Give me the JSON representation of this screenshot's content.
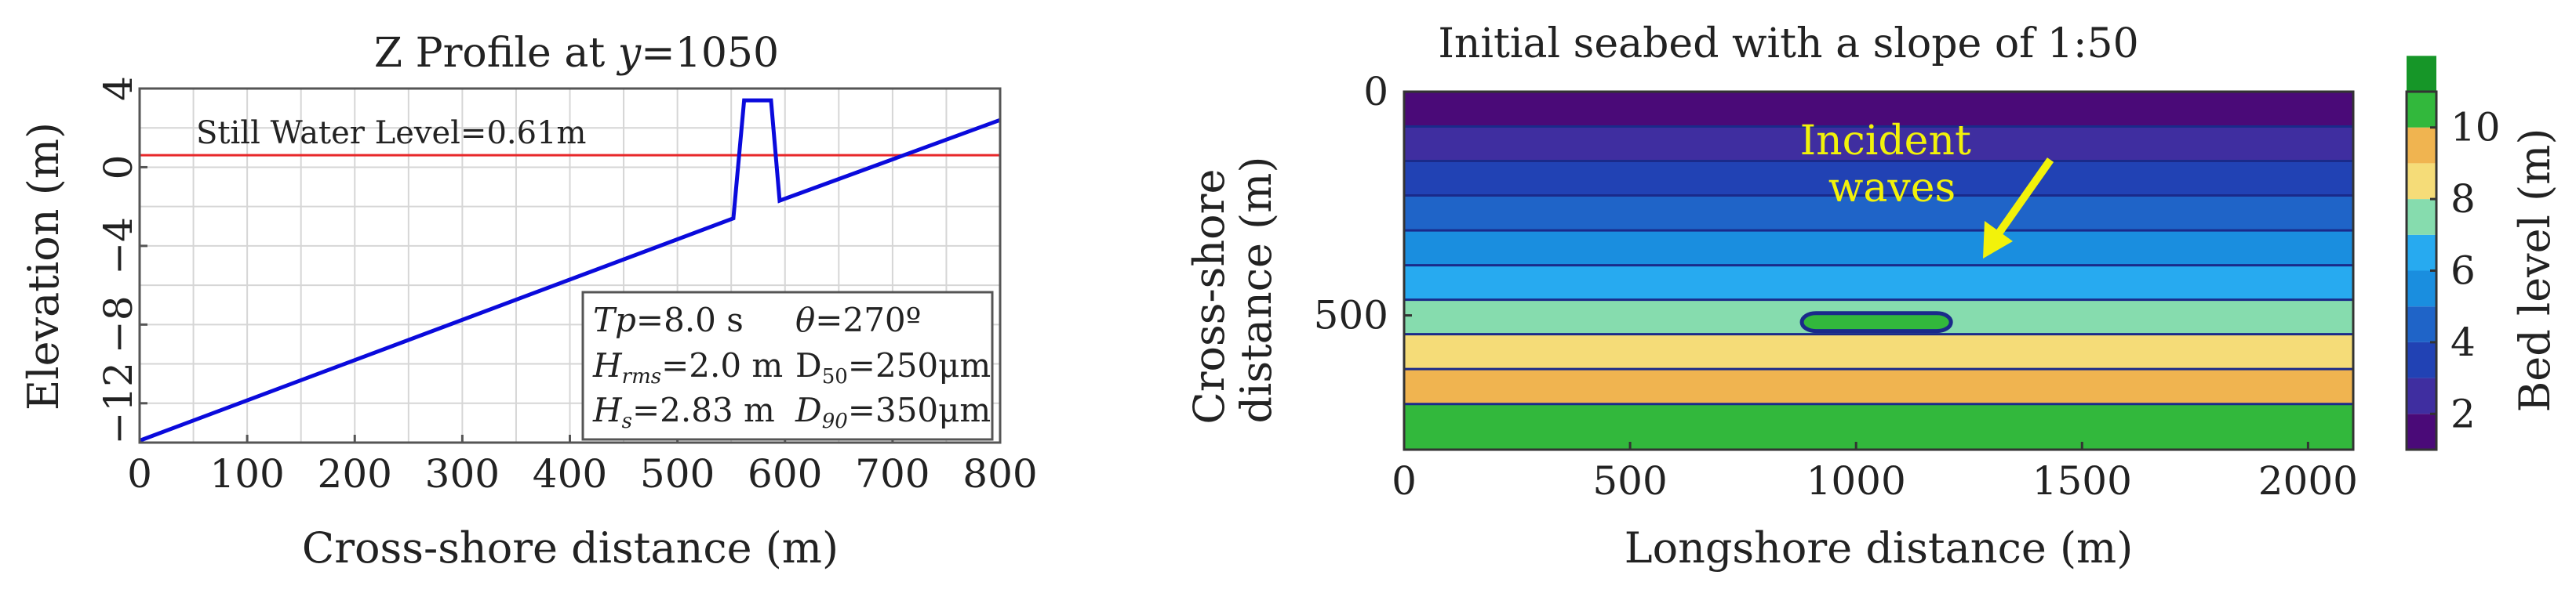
{
  "chart_data": [
    {
      "type": "line",
      "title_prefix": "Z Profile at ",
      "title_var": "y",
      "title_suffix": "=1050",
      "xlabel": "Cross-shore distance (m)",
      "ylabel": "Elevation (m)",
      "xlim": [
        0,
        800
      ],
      "ylim": [
        -14,
        4
      ],
      "xticks": [
        "0",
        "100",
        "200",
        "300",
        "400",
        "500",
        "600",
        "700",
        "800"
      ],
      "yticks": [
        "4",
        "0",
        "−4",
        "−8",
        "−12"
      ],
      "grid": true,
      "series": [
        {
          "color": "#0a0adc",
          "x": [
            0,
            552,
            562,
            570,
            587,
            595,
            800
          ],
          "y": [
            -13.9,
            -2.6,
            3.4,
            3.4,
            3.4,
            -1.7,
            2.4
          ]
        }
      ],
      "still_water_level": 0.61,
      "still_water_color": "#e8282a",
      "still_water_label": "Still Water Level=0.61m",
      "params": [
        {
          "var": "Tp",
          "sub": "",
          "rest": "=8.0 s"
        },
        {
          "var": "θ",
          "sub": "",
          "rest": "=270º"
        },
        {
          "var": "H",
          "sub": "rms",
          "rest": "=2.0 m"
        },
        {
          "var": "D",
          "sub": "50",
          "rest": "=250μm",
          "upright": true
        },
        {
          "var": "H",
          "sub": "s",
          "rest": "=2.83 m"
        },
        {
          "var": "D",
          "sub": "90",
          "rest": "=350μm"
        }
      ]
    },
    {
      "type": "heatmap",
      "title": "Initial seabed with a slope of 1:50",
      "xlabel": "Longshore distance (m)",
      "ylabel_lines": [
        "Cross-shore",
        "distance (m)"
      ],
      "xlim": [
        0,
        2100
      ],
      "ylim": [
        0,
        800
      ],
      "xticks": [
        "0",
        "500",
        "1000",
        "1500",
        "2000"
      ],
      "yticks": [
        "0",
        "500"
      ],
      "bands": [
        {
          "from": 0,
          "to": 78,
          "level": 1.5
        },
        {
          "from": 78,
          "to": 155,
          "level": 2.5
        },
        {
          "from": 155,
          "to": 232,
          "level": 3.5
        },
        {
          "from": 232,
          "to": 310,
          "level": 4.5
        },
        {
          "from": 310,
          "to": 388,
          "level": 5.5
        },
        {
          "from": 388,
          "to": 465,
          "level": 6.5
        },
        {
          "from": 465,
          "to": 542,
          "level": 7.5
        },
        {
          "from": 542,
          "to": 620,
          "level": 8.5
        },
        {
          "from": 620,
          "to": 698,
          "level": 9.5
        },
        {
          "from": 698,
          "to": 800,
          "level": 10.5
        }
      ],
      "structure": {
        "x0": 880,
        "x1": 1210,
        "y0": 495,
        "y1": 535,
        "level": 10.5
      },
      "annotation_lines": [
        "Incident",
        "waves"
      ],
      "annotation_color": "#f2f20a",
      "colorbar": {
        "label": "Bed level (m)",
        "levels": [
          1.5,
          2.5,
          3.5,
          4.5,
          5.5,
          6.5,
          7.5,
          8.5,
          9.5,
          10.5
        ],
        "colors": [
          "#4a0a78",
          "#3f2ea0",
          "#2142b4",
          "#1f64c8",
          "#1a8edf",
          "#27aaf0",
          "#86dcae",
          "#f5dc78",
          "#f0b450",
          "#32b83c",
          "#169628"
        ],
        "ticks": [
          "2",
          "4",
          "6",
          "8",
          "10"
        ],
        "range": [
          1,
          11
        ]
      }
    }
  ]
}
